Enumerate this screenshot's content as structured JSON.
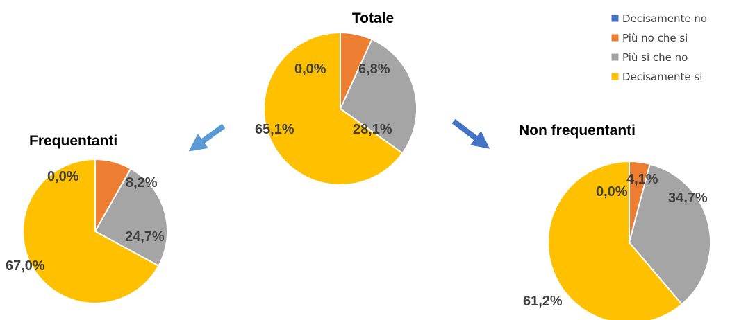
{
  "legend": {
    "items": [
      {
        "label": "Decisamente no",
        "color": "#4472C4"
      },
      {
        "label": "Più no che si",
        "color": "#ED7D31"
      },
      {
        "label": "Più si che no",
        "color": "#A5A5A5"
      },
      {
        "label": "Decisamente si",
        "color": "#FFC000"
      }
    ]
  },
  "arrows": {
    "left_color": "#5B9BD5",
    "right_color": "#4472C4"
  },
  "chart_data": [
    {
      "type": "pie",
      "title": "Totale",
      "categories": [
        "Decisamente no",
        "Più no che si",
        "Più si che no",
        "Decisamente si"
      ],
      "values": [
        0.0,
        6.8,
        28.1,
        65.1
      ],
      "labels": [
        "0,0%",
        "6,8%",
        "28,1%",
        "65,1%"
      ],
      "colors": [
        "#4472C4",
        "#ED7D31",
        "#A5A5A5",
        "#FFC000"
      ]
    },
    {
      "type": "pie",
      "title": "Frequentanti",
      "categories": [
        "Decisamente no",
        "Più no che si",
        "Più si che no",
        "Decisamente si"
      ],
      "values": [
        0.0,
        8.2,
        24.7,
        67.0
      ],
      "labels": [
        "0,0%",
        "8,2%",
        "24,7%",
        "67,0%"
      ],
      "colors": [
        "#4472C4",
        "#ED7D31",
        "#A5A5A5",
        "#FFC000"
      ]
    },
    {
      "type": "pie",
      "title": "Non frequentanti",
      "categories": [
        "Decisamente no",
        "Più no che si",
        "Più si che no",
        "Decisamente si"
      ],
      "values": [
        0.0,
        4.1,
        34.7,
        61.2
      ],
      "labels": [
        "0,0%",
        "4,1%",
        "34,7%",
        "61,2%"
      ],
      "colors": [
        "#4472C4",
        "#ED7D31",
        "#A5A5A5",
        "#FFC000"
      ]
    }
  ]
}
